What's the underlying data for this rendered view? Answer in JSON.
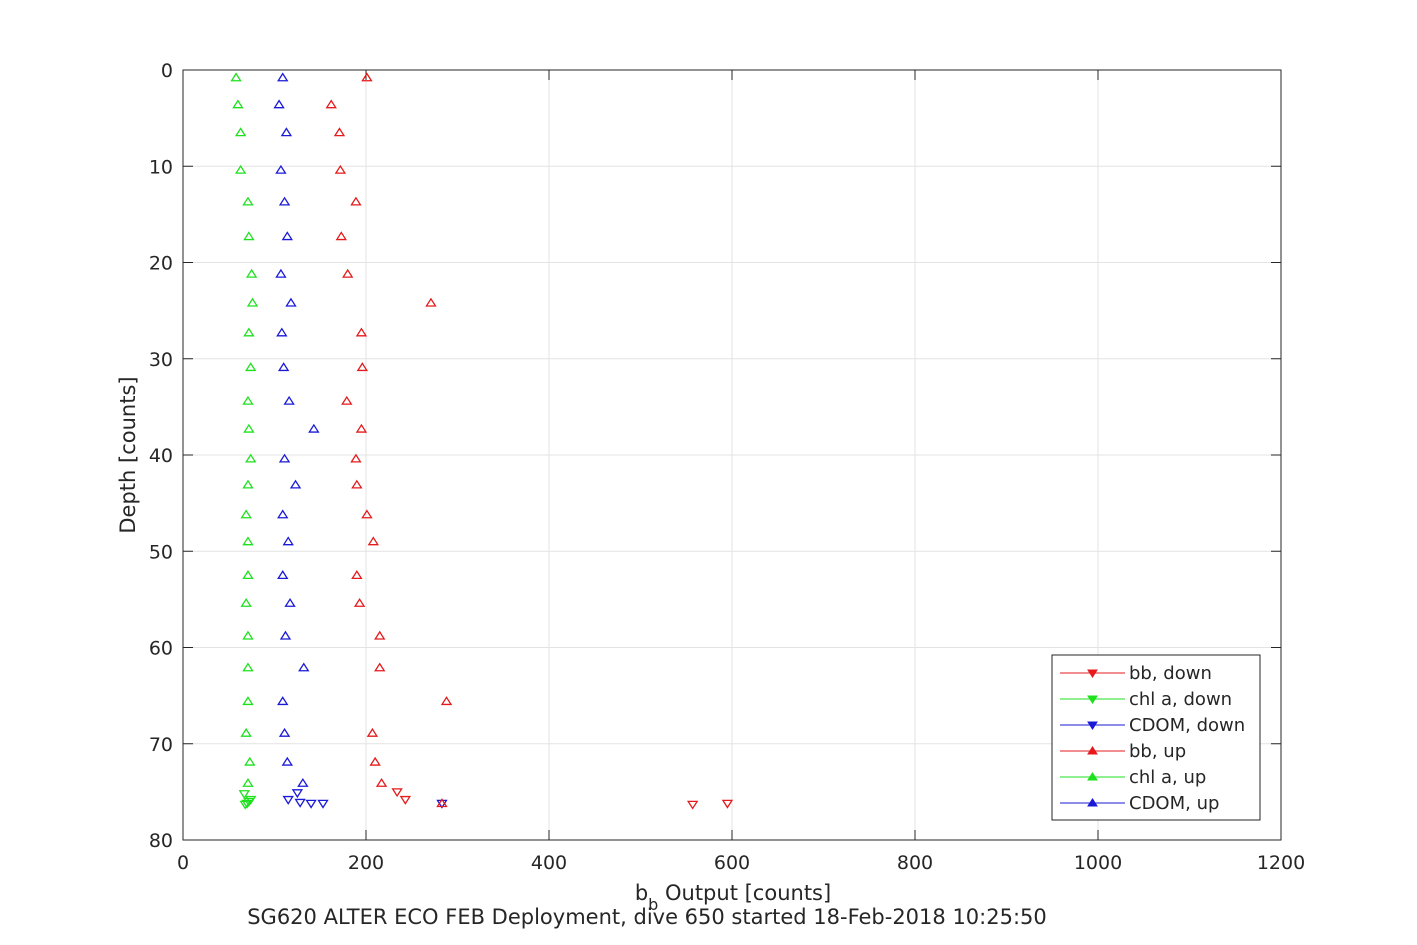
{
  "chart_data": {
    "type": "scatter",
    "xlabel_main": "b",
    "xlabel_sub": "b",
    "xlabel_rest": " Output [counts]",
    "ylabel": "Depth [counts]",
    "caption": "SG620 ALTER ECO FEB Deployment, dive 650 started 18-Feb-2018 10:25:50",
    "xlim": [
      0,
      1200
    ],
    "ylim": [
      0,
      80
    ],
    "y_reversed": true,
    "x_ticks": [
      0,
      200,
      400,
      600,
      800,
      1000,
      1200
    ],
    "y_ticks": [
      0,
      10,
      20,
      30,
      40,
      50,
      60,
      70,
      80
    ],
    "grid": true,
    "legend_position": "bottom-right",
    "series": [
      {
        "name": "bb, down",
        "color": "#e41a1c",
        "marker": "triangle-down",
        "points": [
          [
            557,
            76.3
          ],
          [
            595,
            76.2
          ],
          [
            243,
            75.8
          ],
          [
            234,
            75.0
          ]
        ]
      },
      {
        "name": "chl a, down",
        "color": "#1ee11e",
        "marker": "triangle-down",
        "points": [
          [
            68,
            76.3
          ],
          [
            70,
            76.2
          ],
          [
            72,
            76.0
          ],
          [
            74,
            75.8
          ],
          [
            67,
            75.2
          ]
        ]
      },
      {
        "name": "CDOM, down",
        "color": "#1a1ad6",
        "marker": "triangle-down",
        "points": [
          [
            153,
            76.2
          ],
          [
            140,
            76.2
          ],
          [
            128,
            76.1
          ],
          [
            115,
            75.8
          ],
          [
            125,
            75.1
          ],
          [
            283,
            76.2
          ]
        ]
      },
      {
        "name": "bb, up",
        "color": "#e41a1c",
        "marker": "triangle-up",
        "points": [
          [
            201,
            0.8
          ],
          [
            162,
            3.6
          ],
          [
            171,
            6.5
          ],
          [
            172,
            10.4
          ],
          [
            189,
            13.7
          ],
          [
            173,
            17.3
          ],
          [
            180,
            21.2
          ],
          [
            271,
            24.2
          ],
          [
            195,
            27.3
          ],
          [
            196,
            30.9
          ],
          [
            179,
            34.4
          ],
          [
            195,
            37.3
          ],
          [
            189,
            40.4
          ],
          [
            190,
            43.1
          ],
          [
            201,
            46.2
          ],
          [
            208,
            49.0
          ],
          [
            190,
            52.5
          ],
          [
            193,
            55.4
          ],
          [
            215,
            58.8
          ],
          [
            215,
            62.1
          ],
          [
            288,
            65.6
          ],
          [
            207,
            68.9
          ],
          [
            210,
            71.9
          ],
          [
            217,
            74.1
          ],
          [
            283,
            76.2
          ]
        ]
      },
      {
        "name": "chl a, up",
        "color": "#1ee11e",
        "marker": "triangle-up",
        "points": [
          [
            58,
            0.8
          ],
          [
            60,
            3.6
          ],
          [
            63,
            6.5
          ],
          [
            63,
            10.4
          ],
          [
            71,
            13.7
          ],
          [
            72,
            17.3
          ],
          [
            75,
            21.2
          ],
          [
            76,
            24.2
          ],
          [
            72,
            27.3
          ],
          [
            74,
            30.9
          ],
          [
            71,
            34.4
          ],
          [
            72,
            37.3
          ],
          [
            74,
            40.4
          ],
          [
            71,
            43.1
          ],
          [
            69,
            46.2
          ],
          [
            71,
            49.0
          ],
          [
            71,
            52.5
          ],
          [
            69,
            55.4
          ],
          [
            71,
            58.8
          ],
          [
            71,
            62.1
          ],
          [
            71,
            65.6
          ],
          [
            69,
            68.9
          ],
          [
            73,
            71.9
          ],
          [
            71,
            74.1
          ]
        ]
      },
      {
        "name": "CDOM, up",
        "color": "#1a1ad6",
        "marker": "triangle-up",
        "points": [
          [
            109,
            0.8
          ],
          [
            105,
            3.6
          ],
          [
            113,
            6.5
          ],
          [
            107,
            10.4
          ],
          [
            111,
            13.7
          ],
          [
            114,
            17.3
          ],
          [
            107,
            21.2
          ],
          [
            118,
            24.2
          ],
          [
            108,
            27.3
          ],
          [
            110,
            30.9
          ],
          [
            116,
            34.4
          ],
          [
            143,
            37.3
          ],
          [
            111,
            40.4
          ],
          [
            123,
            43.1
          ],
          [
            109,
            46.2
          ],
          [
            115,
            49.0
          ],
          [
            109,
            52.5
          ],
          [
            117,
            55.4
          ],
          [
            112,
            58.8
          ],
          [
            132,
            62.1
          ],
          [
            109,
            65.6
          ],
          [
            111,
            68.9
          ],
          [
            114,
            71.9
          ],
          [
            131,
            74.1
          ]
        ]
      }
    ]
  }
}
